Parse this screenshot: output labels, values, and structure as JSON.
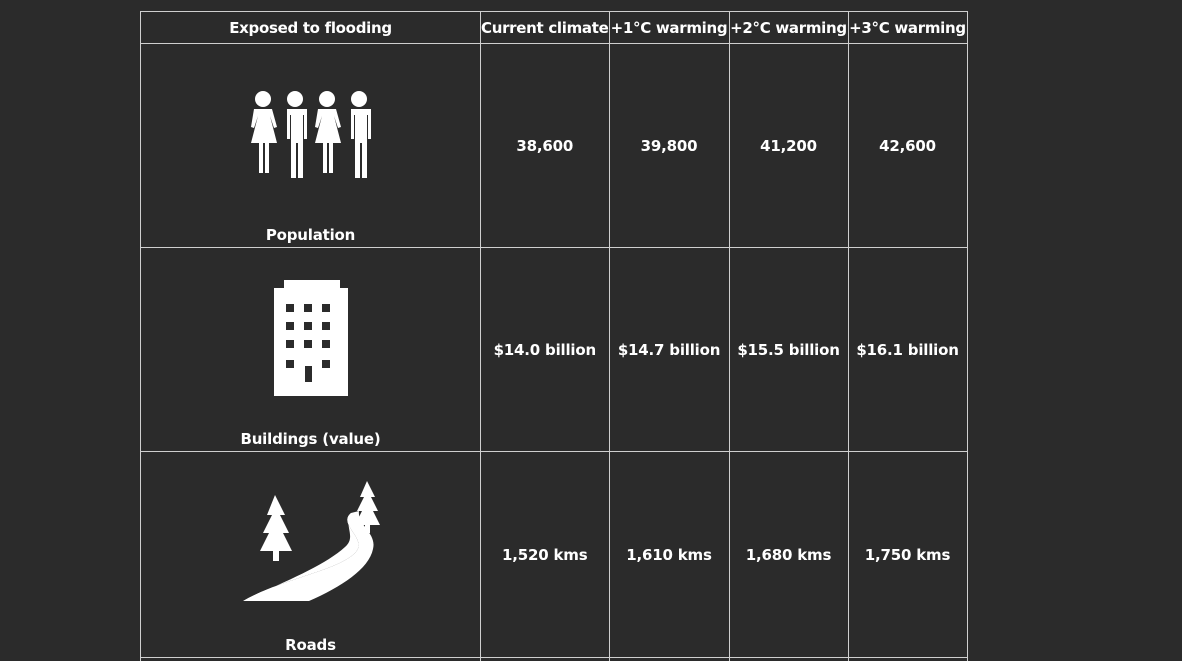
{
  "table": {
    "headers": [
      "Exposed to flooding",
      "Current climate",
      "+1°C warming",
      "+2°C warming",
      "+3°C warming"
    ],
    "rows": [
      {
        "label": "Population",
        "icon": "people-icon",
        "values": [
          "38,600",
          "39,800",
          "41,200",
          "42,600"
        ]
      },
      {
        "label": "Buildings (value)",
        "icon": "building-icon",
        "values": [
          "$14.0 billion",
          "$14.7 billion",
          "$15.5 billion",
          "$16.1 billion"
        ]
      },
      {
        "label": "Roads",
        "icon": "road-trees-icon",
        "values": [
          "1,520 kms",
          "1,610 kms",
          "1,680 kms",
          "1,750 kms"
        ]
      }
    ]
  },
  "colors": {
    "background": "#2b2b2b",
    "border": "#cfcfcf",
    "text": "#ffffff"
  }
}
